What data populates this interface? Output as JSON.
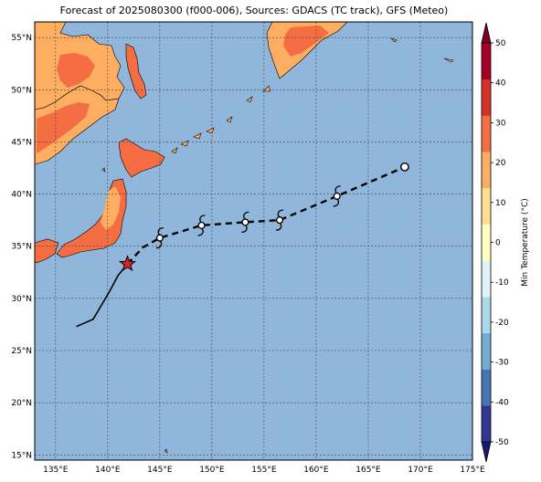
{
  "title": "Forecast of 2025080300 (f000-006), Sources: GDACS (TC track), GFS (Meteo)",
  "map": {
    "lon_range": [
      133,
      175
    ],
    "lat_range": [
      14.5,
      56.5
    ],
    "lon_ticks": [
      {
        "value": 135,
        "label": "135°E"
      },
      {
        "value": 140,
        "label": "140°E"
      },
      {
        "value": 145,
        "label": "145°E"
      },
      {
        "value": 150,
        "label": "150°E"
      },
      {
        "value": 155,
        "label": "155°E"
      },
      {
        "value": 160,
        "label": "160°E"
      },
      {
        "value": 165,
        "label": "165°E"
      },
      {
        "value": 170,
        "label": "170°E"
      },
      {
        "value": 175,
        "label": "175°E"
      }
    ],
    "lat_ticks": [
      {
        "value": 15,
        "label": "15°N"
      },
      {
        "value": 20,
        "label": "20°N"
      },
      {
        "value": 25,
        "label": "25°N"
      },
      {
        "value": 30,
        "label": "30°N"
      },
      {
        "value": 35,
        "label": "35°N"
      },
      {
        "value": 40,
        "label": "40°N"
      },
      {
        "value": 45,
        "label": "45°N"
      },
      {
        "value": 50,
        "label": "50°N"
      },
      {
        "value": 55,
        "label": "55°N"
      }
    ],
    "ocean_color": "#91b6db",
    "land_colors": {
      "warm": "#f46d43",
      "mild": "#fdae61",
      "hot": "#d73027"
    }
  },
  "track": {
    "past": [
      [
        137.0,
        27.3
      ],
      [
        138.6,
        28.0
      ],
      [
        140.2,
        30.7
      ],
      [
        141.0,
        32.2
      ],
      [
        141.9,
        33.3
      ]
    ],
    "current": [
      141.9,
      33.3
    ],
    "forecast": [
      [
        141.9,
        33.3
      ],
      [
        143.4,
        34.9
      ],
      [
        145.0,
        35.8
      ],
      [
        149.0,
        37.0
      ],
      [
        153.2,
        37.3
      ],
      [
        156.5,
        37.5
      ],
      [
        162.0,
        39.8
      ],
      [
        168.5,
        42.6
      ]
    ],
    "storm_symbols": [
      [
        145.0,
        35.8
      ],
      [
        149.0,
        37.0
      ],
      [
        153.2,
        37.3
      ],
      [
        156.5,
        37.5
      ],
      [
        162.0,
        39.8
      ]
    ],
    "end_marker": [
      168.5,
      42.6
    ]
  },
  "colorbar": {
    "label": "Min Temperature (°C)",
    "ticks": [
      "-50",
      "-40",
      "-30",
      "-20",
      "-10",
      "0",
      "10",
      "20",
      "30",
      "40",
      "50"
    ],
    "tick_values": [
      -50,
      -40,
      -30,
      -20,
      -10,
      0,
      10,
      20,
      30,
      40,
      50
    ],
    "colors": [
      "#313695",
      "#4575b4",
      "#74add1",
      "#abd9e9",
      "#e0f3f8",
      "#ffffbf",
      "#fee090",
      "#fdae61",
      "#f46d43",
      "#d73027",
      "#a50026"
    ],
    "under_color": "#1a1a6e",
    "over_color": "#7f0022"
  }
}
